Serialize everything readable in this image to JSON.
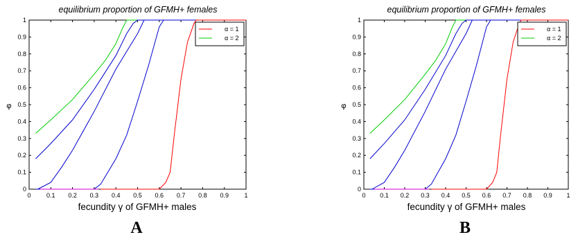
{
  "figure": {
    "panels": [
      {
        "letter": "A",
        "chart_data": {
          "type": "line",
          "title": "equilibrium proportion of GFMH+ females",
          "xlabel": "fecundity γ of GFMH+ males",
          "ylabel": "φ",
          "xlim": [
            0,
            1
          ],
          "ylim": [
            0,
            1
          ],
          "xticks": [
            "0",
            "0.1",
            "0.2",
            "0.3",
            "0.4",
            "0.5",
            "0.6",
            "0.7",
            "0.8",
            "0.9",
            "1"
          ],
          "yticks": [
            "0",
            "0.1",
            "0.2",
            "0.3",
            "0.4",
            "0.5",
            "0.6",
            "0.7",
            "0.8",
            "0.9",
            "1"
          ],
          "grid": false,
          "legend_position": "top-right",
          "legend": [
            {
              "label": "α = 1",
              "color": "#ff0000"
            },
            {
              "label": "α = 2",
              "color": "#00cc00"
            }
          ],
          "series": [
            {
              "color": "#00cc00",
              "x": [
                0.03,
                0.1,
                0.2,
                0.3,
                0.35,
                0.4,
                0.43,
                0.45,
                1.0
              ],
              "y": [
                0.33,
                0.41,
                0.53,
                0.68,
                0.76,
                0.86,
                0.95,
                1.0,
                1.0
              ]
            },
            {
              "color": "#0000cc",
              "x": [
                0.03,
                0.1,
                0.2,
                0.3,
                0.4,
                0.45,
                0.48,
                0.5,
                1.0
              ],
              "y": [
                0.18,
                0.27,
                0.41,
                0.59,
                0.79,
                0.92,
                0.98,
                1.0,
                1.0
              ]
            },
            {
              "color": "#0000cc",
              "x": [
                0.04,
                0.1,
                0.15,
                0.2,
                0.3,
                0.4,
                0.5,
                0.53,
                1.0
              ],
              "y": [
                0.0,
                0.04,
                0.13,
                0.23,
                0.46,
                0.71,
                0.92,
                1.0,
                1.0
              ]
            },
            {
              "color": "#0000cc",
              "x": [
                0.03,
                0.3,
                0.33,
                0.4,
                0.45,
                0.5,
                0.55,
                0.6,
                0.62,
                1.0
              ],
              "y": [
                0.0,
                0.0,
                0.03,
                0.18,
                0.32,
                0.52,
                0.73,
                0.96,
                1.0,
                1.0
              ]
            },
            {
              "color": "#ff0000",
              "x": [
                0.33,
                0.6,
                0.63,
                0.65,
                0.67,
                0.7,
                0.73,
                0.76,
                0.77,
                1.0
              ],
              "y": [
                0.0,
                0.0,
                0.04,
                0.1,
                0.33,
                0.65,
                0.87,
                0.98,
                1.0,
                1.0
              ]
            },
            {
              "color": "#cc00cc",
              "x": [
                0.05,
                0.32
              ],
              "y": [
                0.0,
                0.0
              ]
            }
          ]
        }
      },
      {
        "letter": "B",
        "chart_data": {
          "type": "line",
          "title": "equilibrium proportion of GFMH+ females",
          "xlabel": "fecundity γ of GFMH+ males",
          "ylabel": "φ",
          "xlim": [
            0,
            1
          ],
          "ylim": [
            0,
            1
          ],
          "xticks": [
            "0",
            "0.1",
            "0.2",
            "0.3",
            "0.4",
            "0.5",
            "0.6",
            "0.7",
            "0.8",
            "0.9",
            "1"
          ],
          "yticks": [
            "0",
            "0.1",
            "0.2",
            "0.3",
            "0.4",
            "0.5",
            "0.6",
            "0.7",
            "0.8",
            "0.9",
            "1"
          ],
          "grid": false,
          "legend_position": "top-right",
          "legend": [
            {
              "label": "α = 1",
              "color": "#ff0000"
            },
            {
              "label": "α = 2",
              "color": "#00cc00"
            }
          ],
          "series": [
            {
              "color": "#00cc00",
              "x": [
                0.03,
                0.1,
                0.2,
                0.3,
                0.35,
                0.4,
                0.43,
                0.45,
                1.0
              ],
              "y": [
                0.33,
                0.41,
                0.53,
                0.68,
                0.76,
                0.86,
                0.95,
                1.0,
                1.0
              ]
            },
            {
              "color": "#0000cc",
              "x": [
                0.03,
                0.1,
                0.2,
                0.3,
                0.4,
                0.45,
                0.48,
                0.5,
                1.0
              ],
              "y": [
                0.18,
                0.27,
                0.41,
                0.59,
                0.79,
                0.92,
                0.98,
                1.0,
                1.0
              ]
            },
            {
              "color": "#0000cc",
              "x": [
                0.04,
                0.1,
                0.15,
                0.2,
                0.3,
                0.4,
                0.5,
                0.53,
                1.0
              ],
              "y": [
                0.0,
                0.04,
                0.13,
                0.23,
                0.46,
                0.71,
                0.92,
                1.0,
                1.0
              ]
            },
            {
              "color": "#0000cc",
              "x": [
                0.03,
                0.3,
                0.33,
                0.4,
                0.45,
                0.5,
                0.55,
                0.6,
                0.62,
                1.0
              ],
              "y": [
                0.0,
                0.0,
                0.03,
                0.18,
                0.32,
                0.52,
                0.73,
                0.96,
                1.0,
                1.0
              ]
            },
            {
              "color": "#ff0000",
              "x": [
                0.33,
                0.6,
                0.63,
                0.65,
                0.67,
                0.7,
                0.73,
                0.76,
                0.77,
                1.0
              ],
              "y": [
                0.0,
                0.0,
                0.04,
                0.1,
                0.33,
                0.65,
                0.87,
                0.98,
                1.0,
                1.0
              ]
            },
            {
              "color": "#cc00cc",
              "x": [
                0.05,
                0.32
              ],
              "y": [
                0.0,
                0.0
              ]
            }
          ]
        }
      }
    ]
  }
}
